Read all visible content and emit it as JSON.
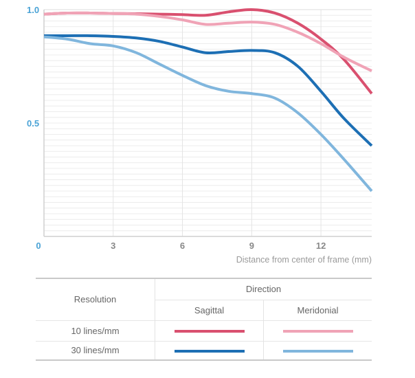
{
  "chart_data": {
    "type": "line",
    "title": "",
    "xlabel": "Distance from center of frame (mm)",
    "ylabel": "",
    "xlim": [
      0,
      14.2
    ],
    "ylim": [
      0.0,
      1.0
    ],
    "xticks": [
      "0",
      "3",
      "6",
      "9",
      "12"
    ],
    "yticks": [
      "0.5",
      "1.0"
    ],
    "grid": true,
    "series": [
      {
        "name": "10 lines/mm Sagittal",
        "color": "#d9506f",
        "x": [
          0,
          1,
          2,
          3,
          4,
          5,
          6,
          7,
          8,
          9,
          10,
          11,
          12,
          13,
          14.2
        ],
        "y": [
          0.98,
          0.985,
          0.985,
          0.983,
          0.982,
          0.98,
          0.978,
          0.975,
          0.99,
          1.0,
          0.985,
          0.94,
          0.87,
          0.78,
          0.63
        ]
      },
      {
        "name": "10 lines/mm Meridonial",
        "color": "#f0a3b6",
        "x": [
          0,
          1,
          2,
          3,
          4,
          5,
          6,
          7,
          8,
          9,
          10,
          11,
          12,
          13,
          14.2
        ],
        "y": [
          0.98,
          0.985,
          0.985,
          0.983,
          0.98,
          0.97,
          0.955,
          0.935,
          0.94,
          0.945,
          0.935,
          0.9,
          0.85,
          0.79,
          0.73
        ]
      },
      {
        "name": "30 lines/mm Sagittal",
        "color": "#1d6fb4",
        "x": [
          0,
          1,
          2,
          3,
          4,
          5,
          6,
          7,
          8,
          9,
          10,
          11,
          12,
          13,
          14.2
        ],
        "y": [
          0.885,
          0.885,
          0.885,
          0.882,
          0.875,
          0.86,
          0.835,
          0.81,
          0.815,
          0.82,
          0.81,
          0.75,
          0.64,
          0.52,
          0.4
        ]
      },
      {
        "name": "30 lines/mm Meridonial",
        "color": "#80b6dd",
        "x": [
          0,
          1,
          2,
          3,
          4,
          5,
          6,
          7,
          8,
          9,
          10,
          11,
          12,
          13,
          14.2
        ],
        "y": [
          0.88,
          0.87,
          0.85,
          0.84,
          0.81,
          0.76,
          0.71,
          0.665,
          0.64,
          0.63,
          0.61,
          0.545,
          0.45,
          0.34,
          0.2
        ]
      }
    ]
  },
  "legend": {
    "direction_label": "Direction",
    "resolution_label": "Resolution",
    "sagittal_label": "Sagittal",
    "meridonial_label": "Meridonial",
    "rows": [
      {
        "label": "10 lines/mm",
        "sagittal_color": "#d9506f",
        "meridonial_color": "#f0a3b6"
      },
      {
        "label": "30 lines/mm",
        "sagittal_color": "#1d6fb4",
        "meridonial_color": "#80b6dd"
      }
    ]
  }
}
